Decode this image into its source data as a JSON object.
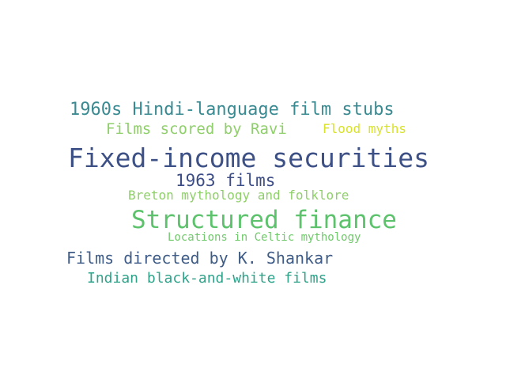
{
  "words": [
    {
      "text": "1960s Hindi-language film stubs",
      "color": "#3a8a91"
    },
    {
      "text": "Films scored by Ravi",
      "color": "#8fcf6a"
    },
    {
      "text": "Flood myths",
      "color": "#d8e22a"
    },
    {
      "text": "Fixed-income securities",
      "color": "#3e5186"
    },
    {
      "text": "1963 films",
      "color": "#3c4c86"
    },
    {
      "text": "Breton mythology and folklore",
      "color": "#8fcf6a"
    },
    {
      "text": "Structured finance",
      "color": "#5cc26c"
    },
    {
      "text": "Locations in Celtic mythology",
      "color": "#6fc96a"
    },
    {
      "text": "Films directed by K. Shankar",
      "color": "#3e5c87"
    },
    {
      "text": "Indian black-and-white films",
      "color": "#2ea38a"
    }
  ]
}
